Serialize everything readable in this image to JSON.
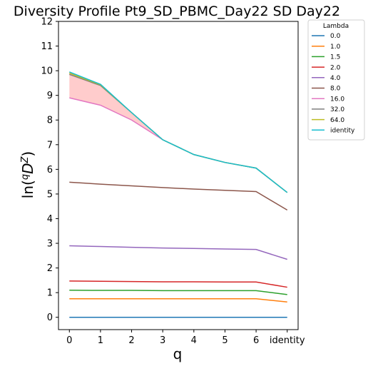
{
  "chart_data": {
    "type": "line",
    "title": "Diversity Profile Pt9_SD_PBMC_Day22 SD Day22",
    "xlabel": "q",
    "ylabel_base": "ln(",
    "ylabel_sup_q": "q",
    "ylabel_D": "D",
    "ylabel_sup_Z": "Z",
    "ylabel_end": ")",
    "x_tick_labels": [
      "0",
      "1",
      "2",
      "3",
      "4",
      "5",
      "6",
      "identity"
    ],
    "x": [
      0,
      1,
      2,
      3,
      4,
      5,
      6,
      7
    ],
    "xlim": [
      -0.35,
      7.35
    ],
    "ylim": [
      -0.5,
      12
    ],
    "y_ticks": [
      0,
      1,
      2,
      3,
      4,
      5,
      6,
      7,
      8,
      9,
      10,
      11,
      12
    ],
    "legend": {
      "title": "Lambda",
      "placement": "outside-top-right"
    },
    "fill_band": {
      "upper_series": "identity",
      "lower_series": "16.0",
      "color": "#ffcccc"
    },
    "series": [
      {
        "name": "0.0",
        "color": "#1f77b4",
        "values": [
          0,
          0,
          0,
          0,
          0,
          0,
          0,
          0
        ]
      },
      {
        "name": "1.0",
        "color": "#ff7f0e",
        "values": [
          0.75,
          0.75,
          0.75,
          0.75,
          0.75,
          0.75,
          0.75,
          0.62
        ]
      },
      {
        "name": "1.5",
        "color": "#2ca02c",
        "values": [
          1.1,
          1.09,
          1.09,
          1.08,
          1.08,
          1.08,
          1.08,
          0.92
        ]
      },
      {
        "name": "2.0",
        "color": "#d62728",
        "values": [
          1.47,
          1.46,
          1.45,
          1.44,
          1.44,
          1.43,
          1.43,
          1.22
        ]
      },
      {
        "name": "4.0",
        "color": "#9467bd",
        "values": [
          2.9,
          2.87,
          2.84,
          2.81,
          2.79,
          2.77,
          2.75,
          2.35
        ]
      },
      {
        "name": "8.0",
        "color": "#8c564b",
        "values": [
          5.48,
          5.4,
          5.33,
          5.26,
          5.2,
          5.15,
          5.1,
          4.35
        ]
      },
      {
        "name": "16.0",
        "color": "#e377c2",
        "values": [
          8.9,
          8.6,
          8.0,
          7.2,
          6.6,
          6.28,
          6.05,
          5.06
        ]
      },
      {
        "name": "32.0",
        "color": "#7f7f7f",
        "values": [
          9.85,
          9.4,
          8.3,
          7.2,
          6.6,
          6.28,
          6.05,
          5.06
        ]
      },
      {
        "name": "64.0",
        "color": "#bcbd22",
        "values": [
          9.9,
          9.43,
          8.3,
          7.2,
          6.6,
          6.28,
          6.05,
          5.06
        ]
      },
      {
        "name": "identity",
        "color": "#17becf",
        "values": [
          9.95,
          9.45,
          8.3,
          7.2,
          6.6,
          6.28,
          6.05,
          5.06
        ]
      }
    ]
  }
}
